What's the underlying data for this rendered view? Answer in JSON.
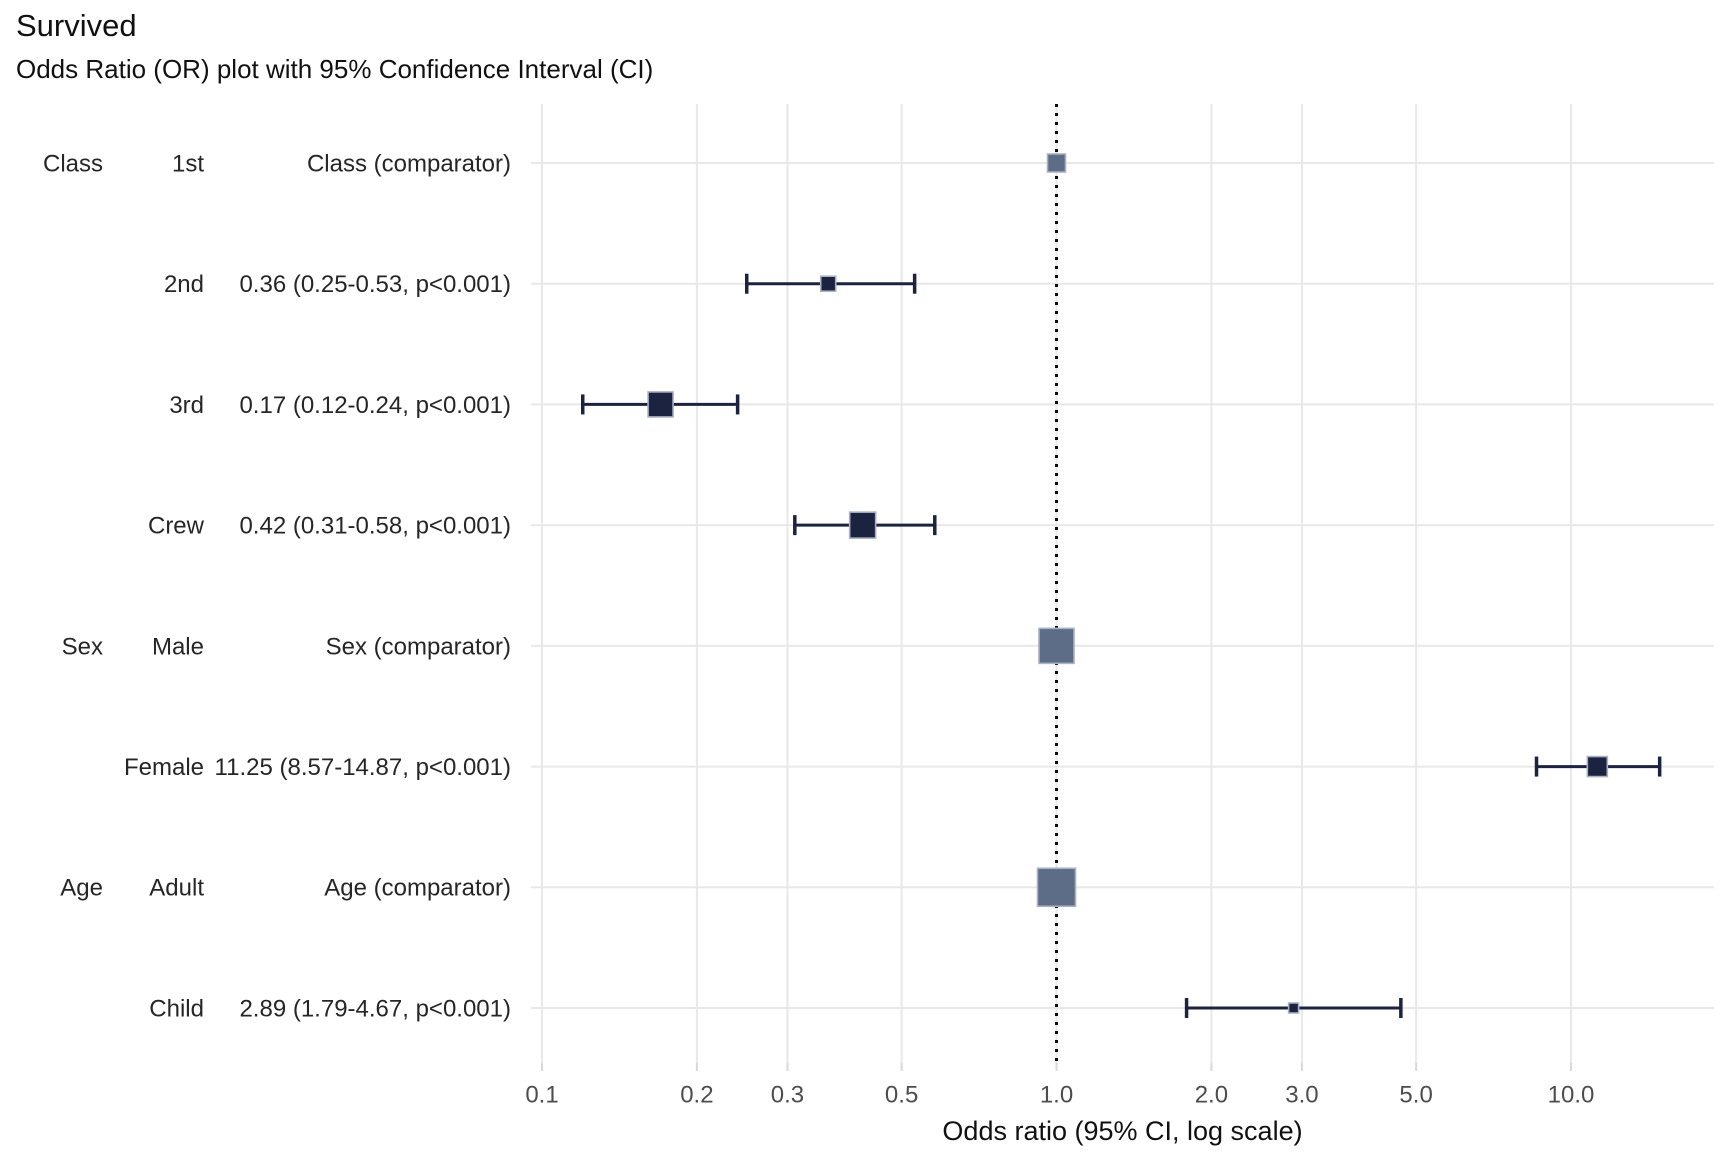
{
  "title": "Survived",
  "subtitle": "Odds Ratio (OR) plot with 95% Confidence Interval (CI)",
  "chart_data": {
    "type": "scatter",
    "subtype": "forest-plot",
    "title": "Survived",
    "subtitle": "Odds Ratio (OR) plot with 95% Confidence Interval (CI)",
    "xlabel": "Odds ratio (95% CI, log scale)",
    "ylabel": "",
    "x_scale": "log10",
    "x_domain": [
      0.095,
      19.0
    ],
    "x_ticks": [
      0.1,
      0.2,
      0.3,
      0.5,
      1.0,
      2.0,
      3.0,
      5.0,
      10.0
    ],
    "x_tick_labels": [
      "0.1",
      "0.2",
      "0.3",
      "0.5",
      "1.0",
      "2.0",
      "3.0",
      "5.0",
      "10.0"
    ],
    "reference_line": 1.0,
    "grid": "major-only",
    "legend": "none",
    "rows": [
      {
        "group": "Class",
        "level": "1st",
        "estimate_label": "Class (comparator)",
        "or": 1.0,
        "ci_low": null,
        "ci_high": null,
        "comparator": true,
        "marker_size": 18
      },
      {
        "group": "",
        "level": "2nd",
        "estimate_label": "0.36 (0.25-0.53, p<0.001)",
        "or": 0.36,
        "ci_low": 0.25,
        "ci_high": 0.53,
        "comparator": false,
        "marker_size": 15
      },
      {
        "group": "",
        "level": "3rd",
        "estimate_label": "0.17 (0.12-0.24, p<0.001)",
        "or": 0.17,
        "ci_low": 0.12,
        "ci_high": 0.24,
        "comparator": false,
        "marker_size": 25
      },
      {
        "group": "",
        "level": "Crew",
        "estimate_label": "0.42 (0.31-0.58, p<0.001)",
        "or": 0.42,
        "ci_low": 0.31,
        "ci_high": 0.58,
        "comparator": false,
        "marker_size": 26
      },
      {
        "group": "Sex",
        "level": "Male",
        "estimate_label": "Sex (comparator)",
        "or": 1.0,
        "ci_low": null,
        "ci_high": null,
        "comparator": true,
        "marker_size": 35
      },
      {
        "group": "",
        "level": "Female",
        "estimate_label": "11.25 (8.57-14.87, p<0.001)",
        "or": 11.25,
        "ci_low": 8.57,
        "ci_high": 14.87,
        "comparator": false,
        "marker_size": 20
      },
      {
        "group": "Age",
        "level": "Adult",
        "estimate_label": "Age (comparator)",
        "or": 1.0,
        "ci_low": null,
        "ci_high": null,
        "comparator": true,
        "marker_size": 38
      },
      {
        "group": "",
        "level": "Child",
        "estimate_label": "2.89 (1.79-4.67, p<0.001)",
        "or": 2.89,
        "ci_low": 1.79,
        "ci_high": 4.67,
        "comparator": false,
        "marker_size": 10
      }
    ],
    "colors": {
      "estimate_marker": "#1c2340",
      "comparator_marker": "#5e6d87",
      "marker_stroke": "#a9b1c2",
      "ci_line": "#1c2340",
      "gridline": "#e8e8e8",
      "tick_mark": "#d9d9d9",
      "reference_line": "#0a0a0a",
      "row_text": "#262626",
      "tick_text": "#4d4d4d"
    }
  }
}
